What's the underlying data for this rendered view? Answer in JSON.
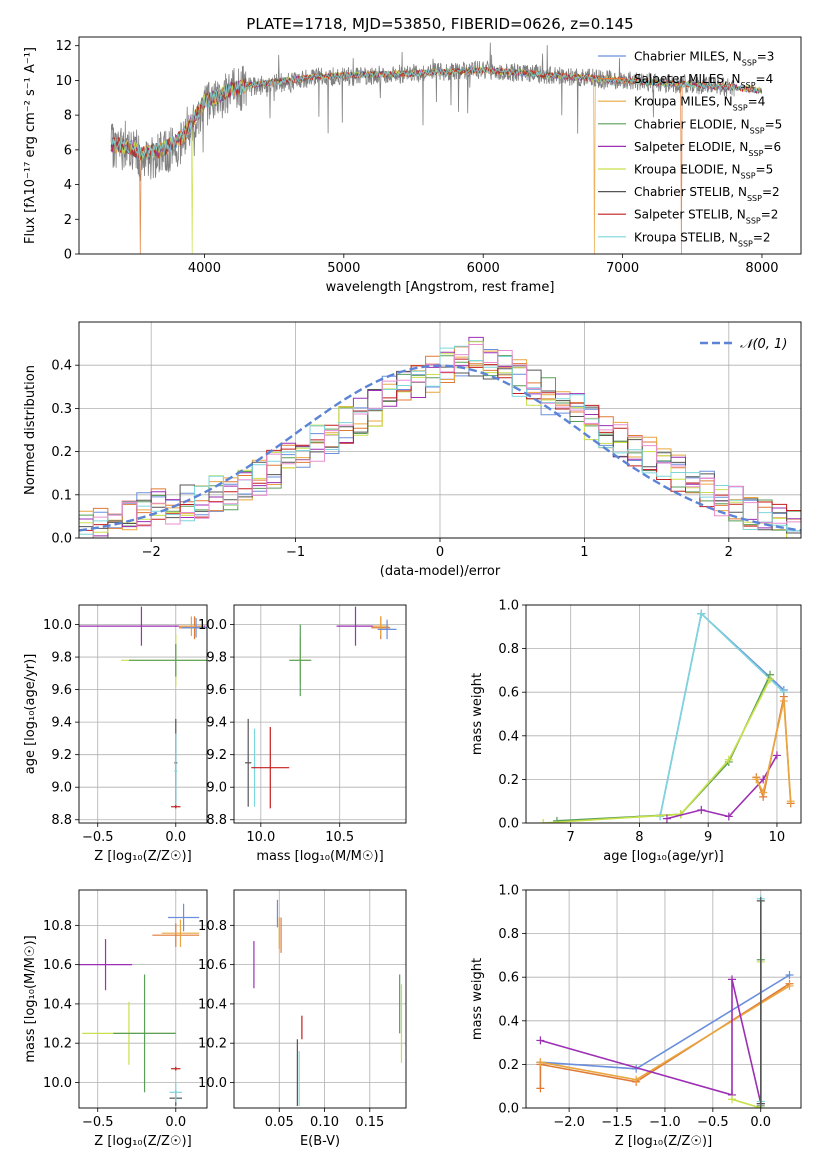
{
  "figure": {
    "title": "PLATE=1718, MJD=53850, FIBERID=0626, z=0.145"
  },
  "colors": {
    "Chabrier MILES": "#6a8fdc",
    "Salpeter MILES": "#e07a34",
    "Kroupa MILES": "#e9a640",
    "Chabrier ELODIE": "#5a9e5a",
    "Salpeter ELODIE": "#9c2fb3",
    "Kroupa ELODIE": "#c8e04a",
    "Chabrier STELIB": "#555555",
    "Salpeter STELIB": "#c41e1e",
    "Kroupa STELIB": "#7dd6dc",
    "data": "#808080",
    "gaussian": "#5b84d6"
  },
  "chart_data": [
    {
      "id": "spectrum",
      "type": "line",
      "title": "PLATE=1718, MJD=53850, FIBERID=0626, z=0.145",
      "xlabel": "wavelength [Angstrom, rest frame]",
      "ylabel": "Flux [fλ10⁻¹⁷ erg cm⁻² s⁻¹ A⁻¹]",
      "xlim": [
        3100,
        8280
      ],
      "ylim": [
        0,
        12.5
      ],
      "xticks": [
        "4000",
        "5000",
        "6000",
        "7000",
        "8000"
      ],
      "yticks": [
        "0",
        "2",
        "4",
        "6",
        "8",
        "10",
        "12"
      ],
      "grid": false,
      "legend_position": "upper-right",
      "legend": [
        {
          "name": "Chabrier MILES",
          "nssp": "3"
        },
        {
          "name": "Salpeter MILES",
          "nssp": "4"
        },
        {
          "name": "Kroupa MILES",
          "nssp": "4"
        },
        {
          "name": "Chabrier ELODIE",
          "nssp": "5"
        },
        {
          "name": "Salpeter ELODIE",
          "nssp": "6"
        },
        {
          "name": "Kroupa ELODIE",
          "nssp": "5"
        },
        {
          "name": "Chabrier STELIB",
          "nssp": "2"
        },
        {
          "name": "Salpeter STELIB",
          "nssp": "2"
        },
        {
          "name": "Kroupa STELIB",
          "nssp": "2"
        }
      ],
      "observed_spectrum_envelope": {
        "x": [
          3330,
          3450,
          3550,
          3700,
          3850,
          4000,
          4100,
          4200,
          4300,
          4500,
          4800,
          5000,
          5500,
          6000,
          6500,
          7000,
          7400,
          7800
        ],
        "y": [
          6.2,
          6.1,
          5.4,
          5.8,
          6.5,
          8.6,
          9.0,
          9.4,
          9.6,
          9.8,
          10.2,
          10.2,
          10.4,
          10.6,
          10.3,
          10.0,
          9.8,
          9.6
        ]
      },
      "model_spectrum_envelope": {
        "x": [
          3330,
          3450,
          3550,
          3700,
          3850,
          4000,
          4100,
          4200,
          4300,
          4500,
          4800,
          5000,
          5500,
          6000,
          6500,
          7000,
          7400,
          7800,
          8000
        ],
        "y": [
          6.3,
          6.2,
          5.8,
          6.0,
          6.8,
          8.8,
          9.1,
          9.5,
          9.7,
          9.9,
          10.2,
          10.3,
          10.4,
          10.6,
          10.3,
          10.0,
          9.8,
          9.6,
          9.4
        ]
      },
      "model_cutoffs": [
        {
          "series": "Salpeter MILES",
          "x": 3540
        },
        {
          "series": "Kroupa ELODIE",
          "x": 3910
        },
        {
          "series": "Kroupa MILES",
          "x": 6800
        },
        {
          "series": "Salpeter MILES",
          "x": 7420
        }
      ]
    },
    {
      "id": "residual-histogram",
      "type": "bar",
      "xlabel": "(data-model)/error",
      "ylabel": "Normed distribution",
      "xlim": [
        -2.5,
        2.5
      ],
      "ylim": [
        0,
        0.5
      ],
      "xticks": [
        "−2",
        "−1",
        "0",
        "1",
        "2"
      ],
      "yticks": [
        "0.0",
        "0.1",
        "0.2",
        "0.3",
        "0.4"
      ],
      "grid": true,
      "legend_position": "upper-right",
      "gaussian_label": "𝒩(0, 1)",
      "bin_width": 0.1,
      "bin_start": -2.5,
      "envelope": [
        0.02,
        0.03,
        0.04,
        0.05,
        0.06,
        0.07,
        0.07,
        0.08,
        0.09,
        0.1,
        0.11,
        0.12,
        0.14,
        0.16,
        0.18,
        0.2,
        0.22,
        0.24,
        0.26,
        0.28,
        0.3,
        0.33,
        0.35,
        0.37,
        0.38,
        0.4,
        0.41,
        0.42,
        0.4,
        0.39,
        0.37,
        0.35,
        0.33,
        0.31,
        0.29,
        0.27,
        0.25,
        0.23,
        0.21,
        0.19,
        0.17,
        0.15,
        0.13,
        0.11,
        0.09,
        0.08,
        0.06,
        0.05,
        0.04,
        0.03
      ]
    },
    {
      "id": "age-vs-z",
      "type": "scatter",
      "xlabel": "Z [log₁₀(Z/Z☉)]",
      "ylabel": "age  [log₁₀(age/yr)]",
      "xlim": [
        -0.62,
        0.2
      ],
      "ylim": [
        8.78,
        10.12
      ],
      "xticks": [
        "−0.5",
        "0.0"
      ],
      "yticks": [
        "8.8",
        "9.0",
        "9.2",
        "9.4",
        "9.6",
        "9.8",
        "10.0"
      ],
      "grid": true,
      "points": [
        {
          "series": "Salpeter ELODIE",
          "x": -0.22,
          "xerr": 0.41,
          "y": 9.99,
          "yerr": 0.12
        },
        {
          "series": "Kroupa ELODIE",
          "x": 0.0,
          "xerr": 0.35,
          "y": 9.78,
          "yerr": 0.16
        },
        {
          "series": "Chabrier ELODIE",
          "x": 0.0,
          "xerr": 0.3,
          "y": 9.78,
          "yerr": 0.1
        },
        {
          "series": "Salpeter MILES",
          "x": 0.12,
          "xerr": 0.1,
          "y": 9.98,
          "yerr": 0.07
        },
        {
          "series": "Kroupa MILES",
          "x": 0.1,
          "xerr": 0.08,
          "y": 9.99,
          "yerr": 0.06
        },
        {
          "series": "Chabrier MILES",
          "x": 0.13,
          "xerr": 0.09,
          "y": 9.98,
          "yerr": 0.06
        },
        {
          "series": "Chabrier STELIB",
          "x": 0.0,
          "xerr": 0.01,
          "y": 9.15,
          "yerr": 0.27
        },
        {
          "series": "Kroupa STELIB",
          "x": 0.0,
          "xerr": 0.01,
          "y": 9.1,
          "yerr": 0.23
        },
        {
          "series": "Salpeter STELIB",
          "x": 0.0,
          "xerr": 0.03,
          "y": 8.88,
          "yerr": 0.01
        }
      ]
    },
    {
      "id": "age-vs-mass",
      "type": "scatter",
      "xlabel": "mass [log₁₀(M/M☉)]",
      "ylabel": "",
      "xlim": [
        9.83,
        10.92
      ],
      "ylim": [
        8.78,
        10.12
      ],
      "xticks": [
        "10.0",
        "10.5"
      ],
      "yticks": [
        "8.8",
        "9.0",
        "9.2",
        "9.4",
        "9.6",
        "9.8",
        "10.0"
      ],
      "grid": true,
      "points": [
        {
          "series": "Salpeter ELODIE",
          "x": 10.6,
          "xerr": 0.12,
          "y": 9.99,
          "yerr": 0.12
        },
        {
          "series": "Kroupa ELODIE",
          "x": 10.25,
          "xerr": 0.06,
          "y": 9.78,
          "yerr": 0.14
        },
        {
          "series": "Chabrier ELODIE",
          "x": 10.25,
          "xerr": 0.07,
          "y": 9.78,
          "yerr": 0.22
        },
        {
          "series": "Salpeter MILES",
          "x": 10.76,
          "xerr": 0.06,
          "y": 9.98,
          "yerr": 0.07
        },
        {
          "series": "Kroupa MILES",
          "x": 10.76,
          "xerr": 0.05,
          "y": 9.99,
          "yerr": 0.06
        },
        {
          "series": "Chabrier MILES",
          "x": 10.8,
          "xerr": 0.06,
          "y": 9.97,
          "yerr": 0.06
        },
        {
          "series": "Chabrier STELIB",
          "x": 9.92,
          "xerr": 0.02,
          "y": 9.15,
          "yerr": 0.27
        },
        {
          "series": "Kroupa STELIB",
          "x": 9.96,
          "xerr": 0.01,
          "y": 9.12,
          "yerr": 0.24
        },
        {
          "series": "Salpeter STELIB",
          "x": 10.06,
          "xerr": 0.12,
          "y": 9.12,
          "yerr": 0.25
        }
      ]
    },
    {
      "id": "mass-weight-vs-age",
      "type": "line",
      "xlabel": "age  [log₁₀(age/yr)]",
      "ylabel": "mass weight",
      "xlim": [
        6.35,
        10.35
      ],
      "ylim": [
        0,
        1.0
      ],
      "xticks": [
        "7",
        "8",
        "9",
        "10"
      ],
      "yticks": [
        "0.0",
        "0.2",
        "0.4",
        "0.6",
        "0.8",
        "1.0"
      ],
      "grid": true,
      "series": [
        {
          "name": "Chabrier MILES",
          "x": [
            8.3,
            8.9,
            10.1
          ],
          "y": [
            0.03,
            0.96,
            0.61
          ]
        },
        {
          "name": "Kroupa STELIB",
          "x": [
            8.3,
            8.9,
            10.1
          ],
          "y": [
            0.03,
            0.96,
            0.6
          ]
        },
        {
          "name": "Chabrier ELODIE",
          "x": [
            6.8,
            8.6,
            9.3,
            9.9
          ],
          "y": [
            0.01,
            0.04,
            0.28,
            0.68
          ]
        },
        {
          "name": "Kroupa ELODIE",
          "x": [
            6.6,
            8.6,
            9.3,
            9.9
          ],
          "y": [
            0.0,
            0.04,
            0.29,
            0.66
          ]
        },
        {
          "name": "Salpeter ELODIE",
          "x": [
            8.4,
            8.9,
            9.3,
            9.8,
            10.0
          ],
          "y": [
            0.02,
            0.06,
            0.03,
            0.2,
            0.31
          ]
        },
        {
          "name": "Salpeter MILES",
          "x": [
            9.7,
            9.8,
            10.1,
            10.2
          ],
          "y": [
            0.21,
            0.12,
            0.58,
            0.09
          ]
        },
        {
          "name": "Kroupa MILES",
          "x": [
            9.7,
            9.8,
            10.1,
            10.2
          ],
          "y": [
            0.2,
            0.14,
            0.56,
            0.1
          ]
        }
      ]
    },
    {
      "id": "mass-vs-z",
      "type": "scatter",
      "xlabel": "Z [log₁₀(Z/Z☉)]",
      "ylabel": "mass [log₁₀(M/M☉)]",
      "xlim": [
        -0.62,
        0.2
      ],
      "ylim": [
        9.87,
        10.98
      ],
      "xticks": [
        "−0.5",
        "0.0"
      ],
      "yticks": [
        "10.0",
        "10.2",
        "10.4",
        "10.6",
        "10.8"
      ],
      "grid": true,
      "points": [
        {
          "series": "Salpeter ELODIE",
          "x": -0.45,
          "xerr": 0.17,
          "y": 10.6,
          "yerr": 0.13
        },
        {
          "series": "Kroupa ELODIE",
          "x": -0.3,
          "xerr": 0.3,
          "y": 10.25,
          "yerr": 0.16
        },
        {
          "series": "Chabrier ELODIE",
          "x": -0.2,
          "xerr": 0.2,
          "y": 10.25,
          "yerr": 0.3
        },
        {
          "series": "Salpeter MILES",
          "x": 0.0,
          "xerr": 0.15,
          "y": 10.75,
          "yerr": 0.06
        },
        {
          "series": "Kroupa MILES",
          "x": 0.03,
          "xerr": 0.12,
          "y": 10.76,
          "yerr": 0.07
        },
        {
          "series": "Chabrier MILES",
          "x": 0.05,
          "xerr": 0.1,
          "y": 10.84,
          "yerr": 0.07
        },
        {
          "series": "Chabrier STELIB",
          "x": 0.0,
          "xerr": 0.04,
          "y": 9.92,
          "yerr": 0.04
        },
        {
          "series": "Kroupa STELIB",
          "x": 0.0,
          "xerr": 0.04,
          "y": 9.95,
          "yerr": 0.05
        },
        {
          "series": "Salpeter STELIB",
          "x": 0.0,
          "xerr": 0.03,
          "y": 10.07,
          "yerr": 0.01
        }
      ]
    },
    {
      "id": "mass-vs-ebv",
      "type": "scatter",
      "xlabel": "E(B-V)",
      "ylabel": "",
      "xlim": [
        0.0,
        0.19
      ],
      "ylim": [
        9.87,
        10.98
      ],
      "xticks": [
        "0.05",
        "0.10",
        "0.15"
      ],
      "yticks": [
        "10.0",
        "10.2",
        "10.4",
        "10.6",
        "10.8"
      ],
      "grid": true,
      "points": [
        {
          "series": "Salpeter ELODIE",
          "x": 0.022,
          "y": 10.6,
          "yerr": 0.12
        },
        {
          "series": "Kroupa MILES",
          "x": 0.05,
          "y": 10.76,
          "yerr": 0.08
        },
        {
          "series": "Chabrier MILES",
          "x": 0.048,
          "y": 10.86,
          "yerr": 0.07
        },
        {
          "series": "Salpeter MILES",
          "x": 0.052,
          "y": 10.75,
          "yerr": 0.09
        },
        {
          "series": "Salpeter STELIB",
          "x": 0.075,
          "y": 10.28,
          "yerr": 0.06
        },
        {
          "series": "Chabrier STELIB",
          "x": 0.07,
          "y": 10.05,
          "yerr": 0.17
        },
        {
          "series": "Kroupa STELIB",
          "x": 0.072,
          "y": 10.02,
          "yerr": 0.14
        },
        {
          "series": "Kroupa ELODIE",
          "x": 0.185,
          "y": 10.3,
          "yerr": 0.2
        },
        {
          "series": "Chabrier ELODIE",
          "x": 0.183,
          "y": 10.4,
          "yerr": 0.15
        }
      ]
    },
    {
      "id": "mass-weight-vs-z",
      "type": "line",
      "xlabel": "Z [log₁₀(Z/Z☉)]",
      "ylabel": "mass weight",
      "xlim": [
        -2.45,
        0.42
      ],
      "ylim": [
        0,
        1.0
      ],
      "xticks": [
        "−2.0",
        "−1.5",
        "−1.0",
        "−0.5",
        "0.0"
      ],
      "yticks": [
        "0.0",
        "0.2",
        "0.4",
        "0.6",
        "0.8",
        "1.0"
      ],
      "grid": true,
      "series": [
        {
          "name": "Chabrier MILES",
          "x": [
            -2.3,
            -1.3,
            0.3
          ],
          "y": [
            0.21,
            0.18,
            0.61
          ]
        },
        {
          "name": "Salpeter MILES",
          "x": [
            -2.3,
            -2.3,
            -1.3,
            0.3
          ],
          "y": [
            0.09,
            0.2,
            0.12,
            0.57
          ]
        },
        {
          "name": "Kroupa MILES",
          "x": [
            -2.3,
            -1.3,
            0.3
          ],
          "y": [
            0.21,
            0.13,
            0.56
          ]
        },
        {
          "name": "Salpeter ELODIE",
          "x": [
            -2.3,
            -0.3,
            -0.3,
            0.0
          ],
          "y": [
            0.31,
            0.06,
            0.59,
            0.02
          ]
        },
        {
          "name": "Kroupa ELODIE",
          "x": [
            -0.3,
            0.0,
            0.0
          ],
          "y": [
            0.04,
            0.0,
            0.67
          ]
        },
        {
          "name": "Chabrier ELODIE",
          "x": [
            0.0,
            0.0
          ],
          "y": [
            0.01,
            0.68
          ]
        },
        {
          "name": "Kroupa STELIB",
          "x": [
            0.0,
            0.0
          ],
          "y": [
            0.03,
            0.96
          ]
        },
        {
          "name": "Chabrier STELIB",
          "x": [
            0.0,
            0.0
          ],
          "y": [
            0.02,
            0.95
          ]
        }
      ]
    }
  ]
}
